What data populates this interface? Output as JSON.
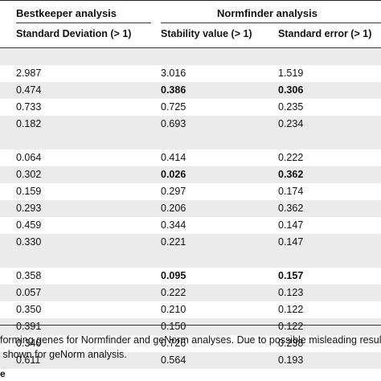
{
  "table": {
    "group_headers": {
      "bestkeeper": "Bestkeeper analysis",
      "normfinder": "Normfinder analysis"
    },
    "column_headers": {
      "std_dev": "Standard Deviation (> 1)",
      "stability": "Stability value (> 1)",
      "std_error": "Standard error (> 1)"
    },
    "sections": [
      {
        "rows": [
          {
            "sd": "2.987",
            "sv": "3.016",
            "se": "1.519",
            "sv_bold": false,
            "se_bold": false
          },
          {
            "sd": "0.474",
            "sv": "0.386",
            "se": "0.306",
            "sv_bold": true,
            "se_bold": true
          },
          {
            "sd": "0.733",
            "sv": "0.725",
            "se": "0.235",
            "sv_bold": false,
            "se_bold": false
          },
          {
            "sd": "0.182",
            "sv": "0.693",
            "se": "0.234",
            "sv_bold": false,
            "se_bold": false
          }
        ]
      },
      {
        "rows": [
          {
            "sd": "0.064",
            "sv": "0.414",
            "se": "0.222",
            "sv_bold": false,
            "se_bold": false
          },
          {
            "sd": "0.302",
            "sv": "0.026",
            "se": "0.362",
            "sv_bold": true,
            "se_bold": true
          },
          {
            "sd": "0.159",
            "sv": "0.297",
            "se": "0.174",
            "sv_bold": false,
            "se_bold": false
          },
          {
            "sd": "0.293",
            "sv": "0.206",
            "se": "0.362",
            "sv_bold": false,
            "se_bold": false
          },
          {
            "sd": "0.459",
            "sv": "0.344",
            "se": "0.147",
            "sv_bold": false,
            "se_bold": false
          },
          {
            "sd": "0.330",
            "sv": "0.221",
            "se": "0.147",
            "sv_bold": false,
            "se_bold": false
          }
        ]
      },
      {
        "rows": [
          {
            "sd": "0.358",
            "sv": "0.095",
            "se": "0.157",
            "sv_bold": true,
            "se_bold": true
          },
          {
            "sd": "0.057",
            "sv": "0.222",
            "se": "0.123",
            "sv_bold": false,
            "se_bold": false
          },
          {
            "sd": "0.350",
            "sv": "0.210",
            "se": "0.122",
            "sv_bold": false,
            "se_bold": false
          },
          {
            "sd": "0.391",
            "sv": "0.150",
            "se": "0.122",
            "sv_bold": false,
            "se_bold": false
          },
          {
            "sd": "0.340",
            "sv": "0.726",
            "se": "0.238",
            "sv_bold": false,
            "se_bold": false
          },
          {
            "sd": "0.611",
            "sv": "0.564",
            "se": "0.193",
            "sv_bold": false,
            "se_bold": false
          }
        ]
      }
    ]
  },
  "footnote": {
    "line1": "forming genes for Normfinder and geNorm analyses. Due to possible misleading results res",
    "line2": "shown for geNorm analysis.",
    "mark": "e"
  },
  "colors": {
    "shade": "#ebebeb",
    "rule": "#333333"
  }
}
